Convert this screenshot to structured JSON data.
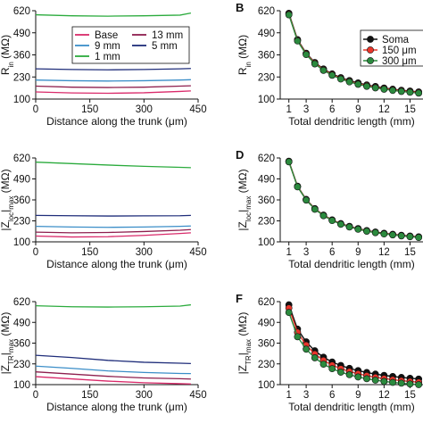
{
  "colors": {
    "base": "#d92a6a",
    "mm13": "#8e1f4e",
    "mm9": "#3b8ec8",
    "mm5": "#1f2d7a",
    "mm1": "#2bab3d",
    "soma": "#111111",
    "um150": "#e8362b",
    "um300": "#2b8a3e"
  },
  "chart_data": [
    {
      "id": "A",
      "type": "line",
      "panel_label": "",
      "ylabel": "R_in (MΩ)",
      "xlabel": "Distance along the trunk (μm)",
      "xlim": [
        0,
        450
      ],
      "ylim": [
        100,
        620
      ],
      "xticks": [
        "0",
        "150",
        "300",
        "450"
      ],
      "yticks": [
        "620",
        "490",
        "360",
        "230",
        "100"
      ],
      "legend": [
        "Base",
        "13 mm",
        "9 mm",
        "5 mm",
        "1 mm"
      ],
      "series": [
        {
          "name": "1 mm",
          "color": "mm1",
          "x": [
            0,
            100,
            200,
            300,
            400,
            430
          ],
          "y": [
            596,
            590,
            588,
            590,
            594,
            606
          ]
        },
        {
          "name": "5 mm",
          "color": "mm5",
          "x": [
            0,
            100,
            200,
            300,
            400,
            430
          ],
          "y": [
            278,
            274,
            272,
            274,
            278,
            280
          ]
        },
        {
          "name": "9 mm",
          "color": "mm9",
          "x": [
            0,
            100,
            200,
            300,
            400,
            430
          ],
          "y": [
            212,
            208,
            206,
            208,
            212,
            214
          ]
        },
        {
          "name": "13 mm",
          "color": "mm13",
          "x": [
            0,
            100,
            200,
            300,
            400,
            430
          ],
          "y": [
            176,
            170,
            168,
            170,
            176,
            178
          ]
        },
        {
          "name": "Base",
          "color": "base",
          "x": [
            0,
            100,
            200,
            300,
            400,
            430
          ],
          "y": [
            142,
            136,
            134,
            137,
            145,
            148
          ]
        }
      ]
    },
    {
      "id": "B",
      "type": "line",
      "panel_label": "B",
      "ylabel": "R_in (MΩ)",
      "xlabel": "Total dendritic length (mm)",
      "xlim": [
        0,
        16.5
      ],
      "ylim": [
        100,
        620
      ],
      "xticks": [
        "1",
        "3",
        "6",
        "9",
        "12",
        "15"
      ],
      "yticks": [
        "620",
        "490",
        "360",
        "230",
        "100"
      ],
      "legend": [
        "Soma",
        "150 μm",
        "300 μm"
      ],
      "series": [
        {
          "name": "Soma",
          "color": "soma",
          "x": [
            1,
            2,
            3,
            4,
            5,
            6,
            7,
            8,
            9,
            10,
            11,
            12,
            13,
            14,
            15,
            16
          ],
          "y": [
            605,
            450,
            370,
            315,
            277,
            248,
            226,
            209,
            195,
            183,
            174,
            165,
            158,
            152,
            147,
            142
          ]
        },
        {
          "name": "150 μm",
          "color": "um150",
          "x": [
            1,
            2,
            3,
            4,
            5,
            6,
            7,
            8,
            9,
            10,
            11,
            12,
            13,
            14,
            15,
            16
          ],
          "y": [
            600,
            446,
            366,
            311,
            273,
            244,
            222,
            205,
            191,
            179,
            170,
            162,
            155,
            149,
            144,
            139
          ]
        },
        {
          "name": "300 μm",
          "color": "um300",
          "x": [
            1,
            2,
            3,
            4,
            5,
            6,
            7,
            8,
            9,
            10,
            11,
            12,
            13,
            14,
            15,
            16
          ],
          "y": [
            596,
            442,
            362,
            307,
            269,
            240,
            218,
            201,
            187,
            175,
            166,
            158,
            151,
            145,
            140,
            135
          ]
        }
      ]
    },
    {
      "id": "C",
      "type": "line",
      "panel_label": "",
      "ylabel": "|Z_loc|max (MΩ)",
      "xlabel": "Distance along the trunk (μm)",
      "xlim": [
        0,
        450
      ],
      "ylim": [
        100,
        620
      ],
      "xticks": [
        "0",
        "150",
        "300",
        "450"
      ],
      "yticks": [
        "620",
        "490",
        "360",
        "230",
        "100"
      ],
      "series": [
        {
          "name": "1 mm",
          "color": "mm1",
          "x": [
            0,
            100,
            200,
            300,
            400,
            430
          ],
          "y": [
            594,
            585,
            576,
            568,
            562,
            560
          ]
        },
        {
          "name": "5 mm",
          "color": "mm5",
          "x": [
            0,
            100,
            200,
            300,
            400,
            430
          ],
          "y": [
            264,
            262,
            260,
            261,
            262,
            264
          ]
        },
        {
          "name": "9 mm",
          "color": "mm9",
          "x": [
            0,
            100,
            200,
            300,
            400,
            430
          ],
          "y": [
            196,
            192,
            190,
            192,
            196,
            198
          ]
        },
        {
          "name": "13 mm",
          "color": "mm13",
          "x": [
            0,
            100,
            200,
            300,
            400,
            430
          ],
          "y": [
            160,
            156,
            158,
            164,
            172,
            176
          ]
        },
        {
          "name": "Base",
          "color": "base",
          "x": [
            0,
            100,
            200,
            300,
            400,
            430
          ],
          "y": [
            136,
            130,
            132,
            140,
            152,
            156
          ]
        }
      ]
    },
    {
      "id": "D",
      "type": "line",
      "panel_label": "D",
      "ylabel": "|Z_loc|max (MΩ)",
      "xlabel": "Total dendritic length (mm)",
      "xlim": [
        0,
        16.5
      ],
      "ylim": [
        100,
        620
      ],
      "xticks": [
        "1",
        "3",
        "6",
        "9",
        "12",
        "15"
      ],
      "yticks": [
        "620",
        "490",
        "360",
        "230",
        "100"
      ],
      "series": [
        {
          "name": "Soma",
          "color": "soma",
          "x": [
            1,
            2,
            3,
            4,
            5,
            6,
            7,
            8,
            9,
            10,
            11,
            12,
            13,
            14,
            15,
            16
          ],
          "y": [
            600,
            445,
            363,
            306,
            266,
            236,
            213,
            196,
            182,
            170,
            161,
            153,
            147,
            141,
            136,
            131
          ]
        },
        {
          "name": "150 μm",
          "color": "um150",
          "x": [
            1,
            2,
            3,
            4,
            5,
            6,
            7,
            8,
            9,
            10,
            11,
            12,
            13,
            14,
            15,
            16
          ],
          "y": [
            598,
            443,
            361,
            304,
            264,
            234,
            211,
            194,
            180,
            168,
            159,
            151,
            145,
            139,
            134,
            129
          ]
        },
        {
          "name": "300 μm",
          "color": "um300",
          "x": [
            1,
            2,
            3,
            4,
            5,
            6,
            7,
            8,
            9,
            10,
            11,
            12,
            13,
            14,
            15,
            16
          ],
          "y": [
            596,
            441,
            359,
            302,
            262,
            232,
            209,
            192,
            178,
            166,
            157,
            149,
            143,
            137,
            132,
            127
          ]
        }
      ]
    },
    {
      "id": "E",
      "type": "line",
      "panel_label": "",
      "ylabel": "|Z_TR|max (MΩ)",
      "xlabel": "Distance along the trunk (μm)",
      "xlim": [
        0,
        450
      ],
      "ylim": [
        100,
        620
      ],
      "xticks": [
        "0",
        "150",
        "300",
        "450"
      ],
      "yticks": [
        "620",
        "490",
        "360",
        "230",
        "100"
      ],
      "series": [
        {
          "name": "1 mm",
          "color": "mm1",
          "x": [
            0,
            100,
            200,
            300,
            400,
            430
          ],
          "y": [
            594,
            588,
            586,
            588,
            592,
            600
          ]
        },
        {
          "name": "5 mm",
          "color": "mm5",
          "x": [
            0,
            100,
            200,
            300,
            400,
            430
          ],
          "y": [
            284,
            270,
            252,
            240,
            234,
            232
          ]
        },
        {
          "name": "9 mm",
          "color": "mm9",
          "x": [
            0,
            100,
            200,
            300,
            400,
            430
          ],
          "y": [
            216,
            202,
            186,
            176,
            170,
            169
          ]
        },
        {
          "name": "13 mm",
          "color": "mm13",
          "x": [
            0,
            100,
            200,
            300,
            400,
            430
          ],
          "y": [
            180,
            166,
            152,
            142,
            137,
            135
          ]
        },
        {
          "name": "Base",
          "color": "base",
          "x": [
            0,
            100,
            200,
            300,
            400,
            430
          ],
          "y": [
            150,
            136,
            122,
            112,
            106,
            104
          ]
        }
      ]
    },
    {
      "id": "F",
      "type": "line",
      "panel_label": "F",
      "ylabel": "|Z_TR|max (MΩ)",
      "xlabel": "Total dendritic length (mm)",
      "xlim": [
        0,
        16.5
      ],
      "ylim": [
        100,
        620
      ],
      "xticks": [
        "1",
        "3",
        "6",
        "9",
        "12",
        "15"
      ],
      "yticks": [
        "620",
        "490",
        "360",
        "230",
        "100"
      ],
      "series": [
        {
          "name": "Soma",
          "color": "soma",
          "x": [
            1,
            2,
            3,
            4,
            5,
            6,
            7,
            8,
            9,
            10,
            11,
            12,
            13,
            14,
            15,
            16
          ],
          "y": [
            600,
            448,
            368,
            312,
            272,
            242,
            220,
            202,
            188,
            176,
            166,
            158,
            151,
            145,
            140,
            135
          ]
        },
        {
          "name": "150 μm",
          "color": "um150",
          "x": [
            1,
            2,
            3,
            4,
            5,
            6,
            7,
            8,
            9,
            10,
            11,
            12,
            13,
            14,
            15,
            16
          ],
          "y": [
            580,
            428,
            348,
            292,
            252,
            222,
            200,
            182,
            168,
            156,
            146,
            138,
            131,
            125,
            120,
            115
          ]
        },
        {
          "name": "300 μm",
          "color": "um300",
          "x": [
            1,
            2,
            3,
            4,
            5,
            6,
            7,
            8,
            9,
            10,
            11,
            12,
            13,
            14,
            15,
            16
          ],
          "y": [
            552,
            400,
            322,
            268,
            228,
            200,
            178,
            162,
            148,
            137,
            128,
            120,
            114,
            109,
            104,
            100
          ]
        }
      ]
    }
  ]
}
